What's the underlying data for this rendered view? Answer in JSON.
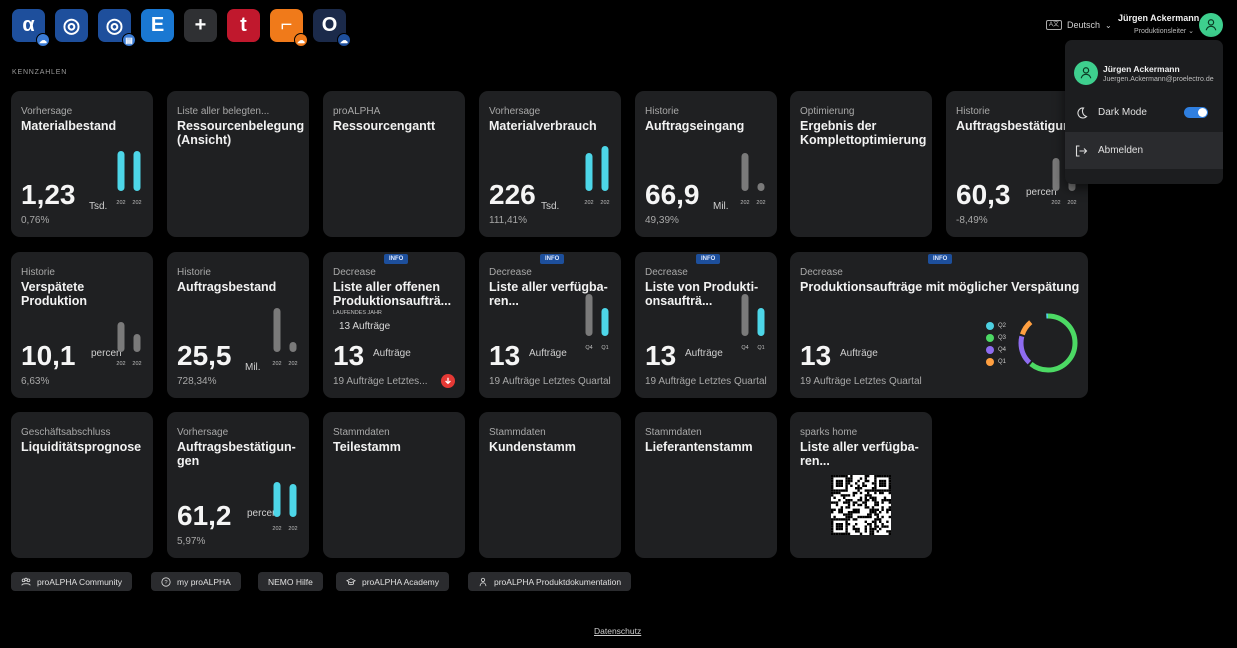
{
  "header": {
    "apps": [
      {
        "name": "alpha-app-icon",
        "glyph": "α",
        "bg": "#1e4f9c",
        "sub": "cloud",
        "sub_color": "#3a7bd5"
      },
      {
        "name": "target-app-icon",
        "glyph": "◎",
        "bg": "#1e4f9c",
        "sub": "",
        "sub_color": ""
      },
      {
        "name": "target-db-app-icon",
        "glyph": "◎",
        "bg": "#1e4f9c",
        "sub": "db",
        "sub_color": "#3a7bd5"
      },
      {
        "name": "e-app-icon",
        "glyph": "E",
        "bg": "#1a78d2",
        "sub": "",
        "sub_color": ""
      },
      {
        "name": "plus-app-icon",
        "glyph": "+",
        "bg": "#2f3033",
        "sub": "",
        "sub_color": ""
      },
      {
        "name": "t-app-icon",
        "glyph": "t",
        "bg": "#c0182d",
        "sub": "",
        "sub_color": ""
      },
      {
        "name": "bracket-app-icon",
        "glyph": "⌐",
        "bg": "#f07a1a",
        "sub": "cloud",
        "sub_color": "#f07a1a"
      },
      {
        "name": "o-app-icon",
        "glyph": "O",
        "bg": "#1b2a4a",
        "sub": "cloud",
        "sub_color": "#1e4f9c"
      }
    ],
    "language": "Deutsch",
    "language_badge": "A文",
    "user_name": "Jürgen Ackermann",
    "user_role": "Produktionsleiter"
  },
  "section_label": "KENNZAHLEN",
  "tiles": {
    "t1": {
      "sub": "Vorhersage",
      "title": "Materialbestand",
      "value": "1,23",
      "unit": "Tsd.",
      "pct": "0,76%",
      "bar_labels": [
        "202",
        "202"
      ]
    },
    "t2": {
      "sub": "Liste aller belegten...",
      "title": "Ressourcenbelegung (Ansicht)"
    },
    "t3": {
      "sub": "proALPHA",
      "title": "Ressourcengantt"
    },
    "t4": {
      "sub": "Vorhersage",
      "title": "Materialverbrauch",
      "value": "226",
      "unit": "Tsd.",
      "pct": "111,41%",
      "bar_labels": [
        "202",
        "202"
      ]
    },
    "t5": {
      "sub": "Historie",
      "title": "Auftragseingang",
      "value": "66,9",
      "unit": "Mil.",
      "pct": "49,39%",
      "bar_labels": [
        "202",
        "202"
      ]
    },
    "t6": {
      "sub": "Optimierung",
      "title": "Ergebnis der Komplettoptimierung"
    },
    "t7": {
      "sub": "Historie",
      "title": "Auftragsbestätigungen",
      "value": "60,3",
      "unit": "percen",
      "pct": "-8,49%",
      "bar_labels": [
        "202",
        "202"
      ]
    },
    "t8": {
      "sub": "Historie",
      "title": "Verspätete Produktion",
      "value": "10,1",
      "unit": "percen",
      "pct": "6,63%",
      "bar_labels": [
        "202",
        "202"
      ]
    },
    "t9": {
      "sub": "Historie",
      "title": "Auftragsbestand",
      "value": "25,5",
      "unit": "Mil.",
      "pct": "728,34%",
      "bar_labels": [
        "202",
        "202"
      ]
    },
    "t10": {
      "badge": "INFO",
      "sub": "Decrease",
      "title": "Liste aller offenen Produktionsaufträ...",
      "small_label": "LAUFENDES JAHR",
      "small_value": "13 Aufträge",
      "value": "13",
      "unit": "Aufträge",
      "footer": "19 Aufträge Letztes..."
    },
    "t11": {
      "badge": "INFO",
      "sub": "Decrease",
      "title": "Liste aller verfügba-ren...",
      "value": "13",
      "unit": "Aufträge",
      "footer": "19 Aufträge Letztes Quartal",
      "bar_labels": [
        "Q4",
        "Q1"
      ]
    },
    "t12": {
      "badge": "INFO",
      "sub": "Decrease",
      "title": "Liste von Produkti-onsaufträ...",
      "value": "13",
      "unit": "Aufträge",
      "footer": "19 Aufträge Letztes Quartal",
      "bar_labels": [
        "Q4",
        "Q1"
      ]
    },
    "t13": {
      "badge": "INFO",
      "sub": "Decrease",
      "title": "Produktionsaufträge mit möglicher Verspätung",
      "value": "13",
      "unit": "Aufträge",
      "footer": "19 Aufträge Letztes Quartal",
      "legend": [
        {
          "label": "Q2",
          "color": "#4dd0e1"
        },
        {
          "label": "Q3",
          "color": "#4cd964"
        },
        {
          "label": "Q4",
          "color": "#8e6cf0"
        },
        {
          "label": "Q1",
          "color": "#ff9f40"
        }
      ]
    },
    "t14": {
      "sub": "Geschäftsabschluss",
      "title": "Liquiditätsprognose"
    },
    "t15": {
      "sub": "Vorhersage",
      "title": "Auftragsbestätigun-gen",
      "value": "61,2",
      "unit": "percen",
      "pct": "5,97%",
      "bar_labels": [
        "202",
        "202"
      ]
    },
    "t16": {
      "sub": "Stammdaten",
      "title": "Teilestamm"
    },
    "t17": {
      "sub": "Stammdaten",
      "title": "Kundenstamm"
    },
    "t18": {
      "sub": "Stammdaten",
      "title": "Lieferantenstamm"
    },
    "t19": {
      "sub": "sparks home",
      "title": "Liste aller verfügba-ren..."
    }
  },
  "links": [
    "proALPHA Community",
    "my proALPHA",
    "NEMO Hilfe",
    "proALPHA Academy",
    "proALPHA Produktdokumentation"
  ],
  "privacy": "Datenschutz",
  "dropdown": {
    "name": "Jürgen Ackermann",
    "email": "Juergen.Ackermann@proelectro.de",
    "dark_mode": "Dark Mode",
    "dark_mode_on": true,
    "logout": "Abmelden"
  },
  "colors": {
    "accent_bar": "#4dd6e8",
    "grey_bar": "#7a7a7a",
    "tile_bg": "#1f2022",
    "info_badge": "#1d4f9c",
    "avatar": "#3ecf8e"
  }
}
